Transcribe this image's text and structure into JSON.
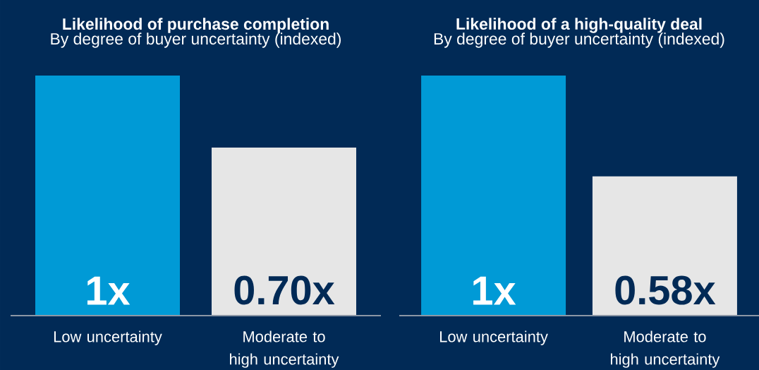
{
  "chart_data": [
    {
      "type": "bar",
      "title": "Likelihood of purchase completion",
      "subtitle": "By degree of buyer uncertainty (indexed)",
      "categories": [
        "Low uncertainty",
        "Moderate to high uncertainty"
      ],
      "values": [
        1,
        0.7
      ],
      "colors": [
        "#009ad6",
        "#e6e6e6"
      ],
      "value_labels": [
        "1x",
        "0.70x"
      ],
      "ylim": [
        0,
        1
      ]
    },
    {
      "type": "bar",
      "title": "Likelihood of a high-quality deal",
      "subtitle": "By degree of buyer uncertainty (indexed)",
      "categories": [
        "Low uncertainty",
        "Moderate to high uncertainty"
      ],
      "values": [
        1,
        0.58
      ],
      "colors": [
        "#009ad6",
        "#e6e6e6"
      ],
      "value_labels": [
        "1x",
        "0.58x"
      ],
      "ylim": [
        0,
        1
      ]
    }
  ]
}
